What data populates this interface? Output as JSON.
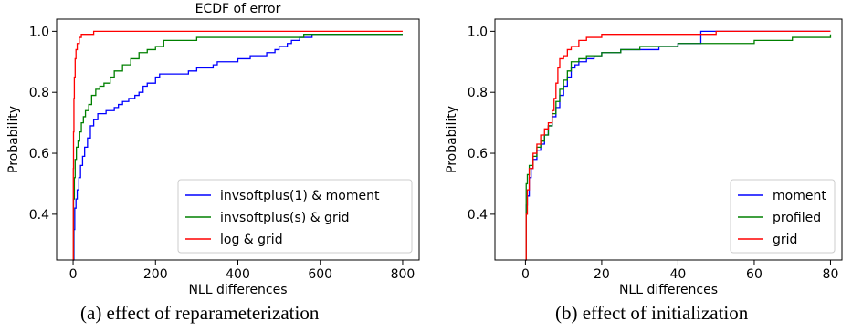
{
  "chart_data": [
    {
      "type": "line",
      "step": true,
      "title": "ECDF of error",
      "xlabel": "NLL differences",
      "ylabel": "Probability",
      "xlim": [
        -40,
        840
      ],
      "ylim": [
        0.25,
        1.04
      ],
      "xticks": [
        0,
        200,
        400,
        600,
        800
      ],
      "yticks": [
        0.4,
        0.6,
        0.8,
        1.0
      ],
      "ytick_labels": [
        "0.4",
        "0.6",
        "0.8",
        "1.0"
      ],
      "grid": false,
      "legend_position": "lower-right",
      "caption": "(a)  effect of reparameterization",
      "series": [
        {
          "name": "invsoftplus(1) & moment",
          "color": "#0000ff",
          "x": [
            0,
            2,
            4,
            7,
            10,
            14,
            18,
            23,
            28,
            35,
            42,
            50,
            60,
            80,
            100,
            110,
            120,
            135,
            150,
            160,
            170,
            180,
            200,
            210,
            240,
            280,
            300,
            340,
            350,
            380,
            400,
            430,
            450,
            470,
            490,
            500,
            520,
            530,
            540,
            550,
            560,
            580,
            800
          ],
          "y": [
            0.25,
            0.35,
            0.42,
            0.45,
            0.48,
            0.52,
            0.56,
            0.59,
            0.62,
            0.65,
            0.69,
            0.71,
            0.73,
            0.74,
            0.75,
            0.76,
            0.77,
            0.78,
            0.79,
            0.8,
            0.82,
            0.83,
            0.85,
            0.86,
            0.86,
            0.87,
            0.88,
            0.89,
            0.9,
            0.9,
            0.91,
            0.92,
            0.92,
            0.93,
            0.94,
            0.95,
            0.96,
            0.97,
            0.97,
            0.98,
            0.98,
            0.99,
            0.99
          ]
        },
        {
          "name": "invsoftplus(s) & grid",
          "color": "#008000",
          "x": [
            0,
            1,
            3,
            5,
            8,
            12,
            16,
            20,
            25,
            30,
            38,
            45,
            55,
            65,
            75,
            90,
            100,
            120,
            140,
            160,
            180,
            200,
            220,
            260,
            300,
            350,
            420,
            500,
            560,
            600,
            800
          ],
          "y": [
            0.25,
            0.45,
            0.52,
            0.58,
            0.62,
            0.64,
            0.67,
            0.7,
            0.72,
            0.74,
            0.76,
            0.79,
            0.81,
            0.82,
            0.83,
            0.85,
            0.87,
            0.89,
            0.91,
            0.93,
            0.94,
            0.95,
            0.97,
            0.97,
            0.98,
            0.98,
            0.98,
            0.98,
            0.99,
            0.99,
            0.99
          ]
        },
        {
          "name": "log & grid",
          "color": "#ff0000",
          "x": [
            0,
            0.5,
            1,
            2,
            3,
            5,
            7,
            10,
            15,
            20,
            30,
            50,
            100,
            300,
            600,
            800
          ],
          "y": [
            0.25,
            0.55,
            0.67,
            0.78,
            0.85,
            0.91,
            0.94,
            0.96,
            0.98,
            0.99,
            0.99,
            1.0,
            1.0,
            1.0,
            1.0,
            1.0
          ]
        }
      ]
    },
    {
      "type": "line",
      "step": true,
      "title": "",
      "xlabel": "NLL differences",
      "ylabel": "Probability",
      "xlim": [
        -8,
        83
      ],
      "ylim": [
        0.25,
        1.04
      ],
      "xticks": [
        0,
        20,
        40,
        60,
        80
      ],
      "yticks": [
        0.4,
        0.6,
        0.8,
        1.0
      ],
      "ytick_labels": [
        "0.4",
        "0.6",
        "0.8",
        "1.0"
      ],
      "grid": false,
      "legend_position": "lower-right",
      "caption": "(b)  effect of initialization",
      "series": [
        {
          "name": "moment",
          "color": "#0000ff",
          "x": [
            0,
            0.2,
            0.5,
            1,
            1.5,
            2,
            3,
            4,
            5,
            6,
            7,
            8,
            9,
            10,
            11,
            12,
            13,
            14,
            16,
            18,
            20,
            25,
            30,
            35,
            40,
            45,
            46,
            50,
            60,
            70,
            80
          ],
          "y": [
            0.25,
            0.43,
            0.46,
            0.52,
            0.55,
            0.58,
            0.61,
            0.63,
            0.66,
            0.69,
            0.72,
            0.75,
            0.79,
            0.82,
            0.85,
            0.88,
            0.89,
            0.9,
            0.91,
            0.92,
            0.93,
            0.94,
            0.94,
            0.95,
            0.96,
            0.96,
            1.0,
            1.0,
            1.0,
            1.0,
            1.0
          ]
        },
        {
          "name": "profiled",
          "color": "#008000",
          "x": [
            0,
            0.2,
            0.5,
            1,
            2,
            3,
            4,
            5,
            6,
            7,
            8,
            9,
            10,
            11,
            12,
            14,
            16,
            18,
            20,
            25,
            30,
            35,
            40,
            50,
            60,
            70,
            80
          ],
          "y": [
            0.25,
            0.5,
            0.53,
            0.56,
            0.59,
            0.62,
            0.64,
            0.66,
            0.69,
            0.73,
            0.77,
            0.81,
            0.84,
            0.87,
            0.9,
            0.91,
            0.92,
            0.92,
            0.93,
            0.94,
            0.95,
            0.95,
            0.96,
            0.96,
            0.97,
            0.98,
            0.99
          ]
        },
        {
          "name": "grid",
          "color": "#ff0000",
          "x": [
            0,
            0.2,
            0.5,
            1,
            2,
            3,
            4,
            5,
            6,
            7,
            7.5,
            8,
            8.5,
            9,
            10,
            11,
            12,
            14,
            16,
            20,
            30,
            40,
            50,
            60,
            70,
            80
          ],
          "y": [
            0.25,
            0.4,
            0.48,
            0.55,
            0.6,
            0.63,
            0.66,
            0.68,
            0.7,
            0.74,
            0.78,
            0.83,
            0.88,
            0.91,
            0.92,
            0.94,
            0.95,
            0.97,
            0.98,
            0.99,
            0.99,
            0.99,
            1.0,
            1.0,
            1.0,
            1.0
          ]
        }
      ]
    }
  ]
}
